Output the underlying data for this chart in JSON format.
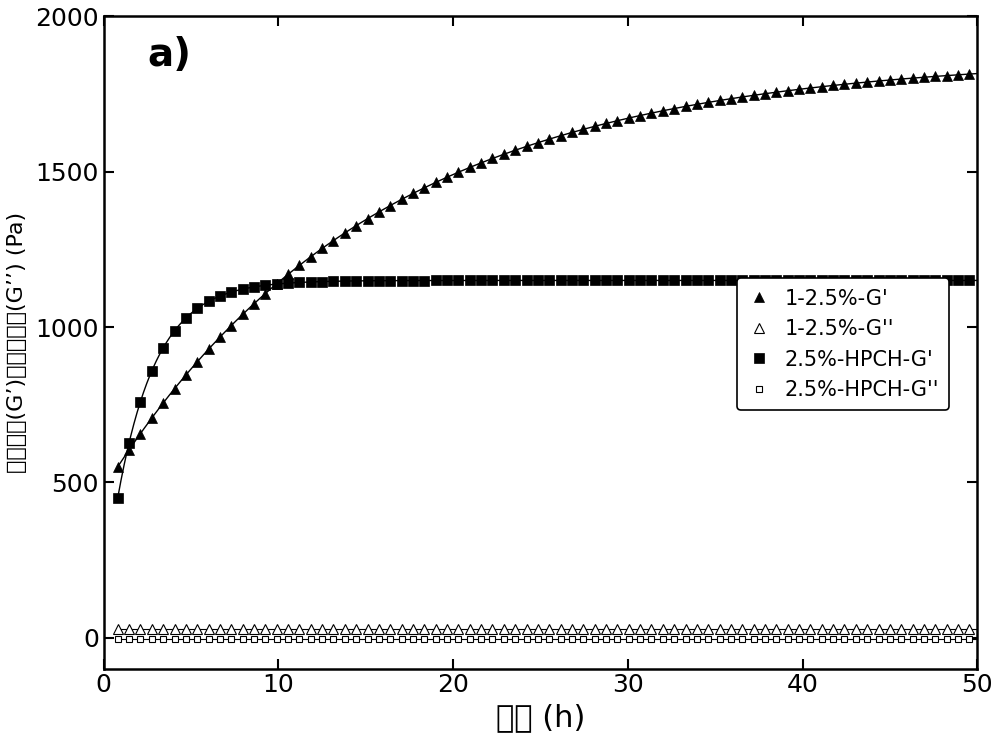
{
  "title_label": "a)",
  "xlabel": "时间 (h)",
  "ylabel": "储能模量(G’)和损耗模量(G’’) (Pa)",
  "xlim": [
    0,
    50
  ],
  "ylim": [
    -100,
    2000
  ],
  "yticks": [
    0,
    500,
    1000,
    1500,
    2000
  ],
  "xticks": [
    0,
    10,
    20,
    30,
    40,
    50
  ],
  "legend_entries": [
    "1-2.5%-G'",
    "1-2.5%-G''",
    "2.5%-HPCH-G'",
    "2.5%-HPCH-G''"
  ],
  "background_color": "#ffffff",
  "curve1_sat": 1870,
  "curve1_rate": 0.065,
  "curve1_init": 550,
  "curve1_t0": 0.8,
  "curve2_sat": 1150,
  "curve2_rate": 0.45,
  "curve2_init": 450,
  "curve2_t0": 0.8,
  "G2prime_1": 28,
  "G2prime_2": -5,
  "marker_step": 0.65,
  "figsize": [
    10.0,
    7.39
  ],
  "dpi": 100
}
